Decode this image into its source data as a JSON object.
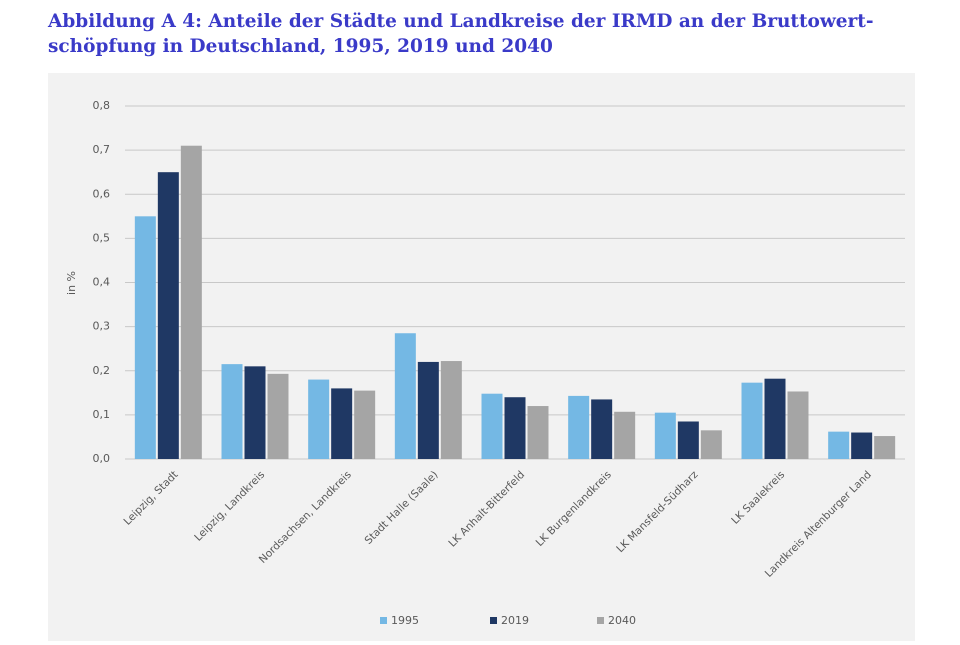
{
  "chart_data": {
    "type": "bar",
    "title": [
      "Abbildung A 4: Anteile der Städte und Landkreise der IRMD an der Bruttowert-",
      "schöpfung in Deutschland, 1995, 2019 und 2040"
    ],
    "y_label": "in %",
    "categories": [
      "Leipzig, Stadt",
      "Leipzig, Landkreis",
      "Nordsachsen, Landkreis",
      "Stadt Halle (Saale)",
      "LK Anhalt-Bitterfeld",
      "LK Burgenlandkreis",
      "LK Mansfeld-Südharz",
      "LK Saalekreis",
      "Landkreis Altenburger Land"
    ],
    "series": [
      {
        "name": "1995",
        "color": "#74b8e4",
        "values": [
          0.55,
          0.215,
          0.18,
          0.285,
          0.148,
          0.143,
          0.105,
          0.173,
          0.062
        ]
      },
      {
        "name": "2019",
        "color": "#1f3864",
        "values": [
          0.65,
          0.21,
          0.16,
          0.22,
          0.14,
          0.135,
          0.085,
          0.182,
          0.06
        ]
      },
      {
        "name": "2040",
        "color": "#a5a5a5",
        "values": [
          0.71,
          0.193,
          0.155,
          0.222,
          0.12,
          0.107,
          0.065,
          0.153,
          0.052
        ]
      }
    ],
    "ylim": [
      0,
      0.8
    ],
    "yticks": [
      {
        "value": 0,
        "label": "0,0"
      },
      {
        "value": 0.1,
        "label": "0,1"
      },
      {
        "value": 0.2,
        "label": "0,2"
      },
      {
        "value": 0.3,
        "label": "0,3"
      },
      {
        "value": 0.4,
        "label": "0,4"
      },
      {
        "value": 0.5,
        "label": "0,5"
      },
      {
        "value": 0.6,
        "label": "0,6"
      },
      {
        "value": 0.7,
        "label": "0,7"
      },
      {
        "value": 0.8,
        "label": "0,8"
      }
    ],
    "grid": true,
    "legend": "bottom"
  }
}
